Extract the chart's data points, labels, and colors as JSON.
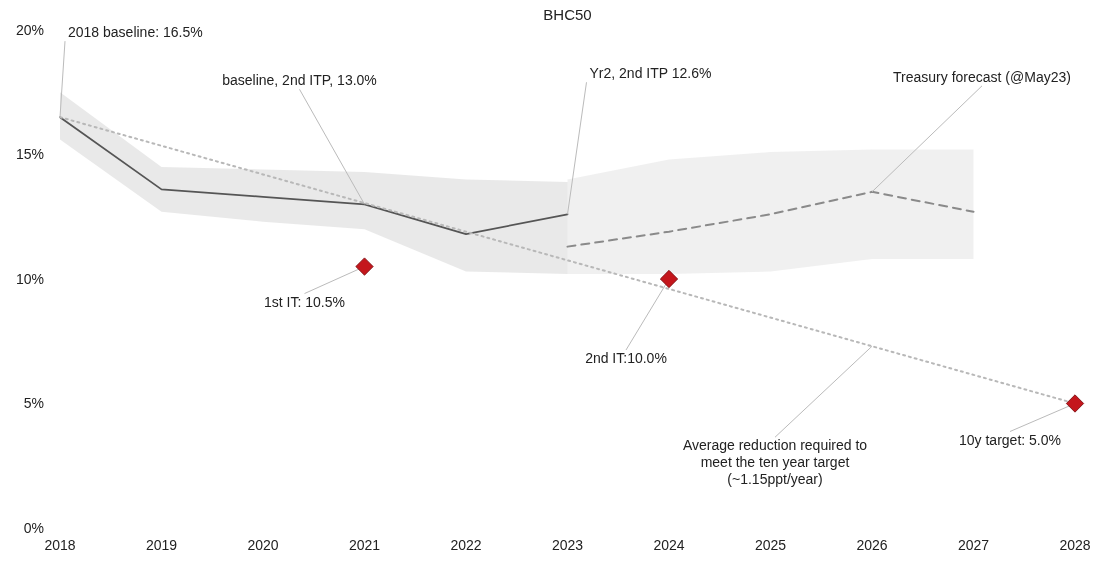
{
  "chart_data": {
    "type": "line",
    "title": "BHC50",
    "xlim": [
      2018,
      2028
    ],
    "xticks": [
      2018,
      2019,
      2020,
      2021,
      2022,
      2023,
      2024,
      2025,
      2026,
      2027,
      2028
    ],
    "ylim": [
      0,
      20
    ],
    "yticks": [
      {
        "value": 0,
        "label": "0%"
      },
      {
        "value": 5,
        "label": "5%"
      },
      {
        "value": 10,
        "label": "10%"
      },
      {
        "value": 15,
        "label": "15%"
      },
      {
        "value": 20,
        "label": "20%"
      }
    ],
    "grid": false,
    "series": [
      {
        "type": "line",
        "color": "#555555",
        "line_style": "solid",
        "x": [
          2018,
          2019,
          2020,
          2021,
          2022,
          2023
        ],
        "values": [
          16.5,
          13.6,
          13.3,
          13.0,
          11.8,
          12.6
        ],
        "lower": [
          15.6,
          12.7,
          12.3,
          12.0,
          10.3,
          10.2
        ],
        "upper": [
          17.5,
          14.5,
          14.4,
          14.3,
          14.0,
          13.9
        ]
      },
      {
        "type": "line",
        "color": "#8a8a8a",
        "line_style": "dashed",
        "x": [
          2023,
          2024,
          2025,
          2026,
          2027
        ],
        "values": [
          11.3,
          11.9,
          12.6,
          13.5,
          12.7
        ],
        "lower": [
          10.2,
          10.2,
          10.3,
          10.8,
          10.8
        ],
        "upper": [
          14.0,
          14.8,
          15.1,
          15.2,
          15.2
        ]
      },
      {
        "type": "line",
        "color": "#b8b8b8",
        "line_style": "dotted",
        "x": [
          2018,
          2028
        ],
        "values": [
          16.5,
          5.0
        ]
      },
      {
        "type": "scatter",
        "color": "#c4161c",
        "marker": "diamond",
        "x": [
          2021,
          2024,
          2028
        ],
        "values": [
          10.5,
          10.0,
          5.0
        ]
      }
    ],
    "annotations": [
      {
        "text": "2018 baseline: 16.5%",
        "x": 2018,
        "y": 16.5
      },
      {
        "text": "baseline, 2nd ITP,  13.0%",
        "x": 2021,
        "y": 13.0
      },
      {
        "text": "Yr2, 2nd ITP 12.6%",
        "x": 2023,
        "y": 12.6
      },
      {
        "text": "Treasury forecast (@May23)",
        "x": 2026,
        "y": 13.5
      },
      {
        "text": "1st IT: 10.5%",
        "x": 2021,
        "y": 10.5
      },
      {
        "text": "2nd IT:10.0%",
        "x": 2024,
        "y": 10.0
      },
      {
        "text": "10y target: 5.0%",
        "x": 2028,
        "y": 5.0
      },
      {
        "text": "Average reduction required to\nmeet the ten year target\n(~1.15ppt/year)",
        "x": 2026,
        "y": 7.3
      }
    ]
  }
}
